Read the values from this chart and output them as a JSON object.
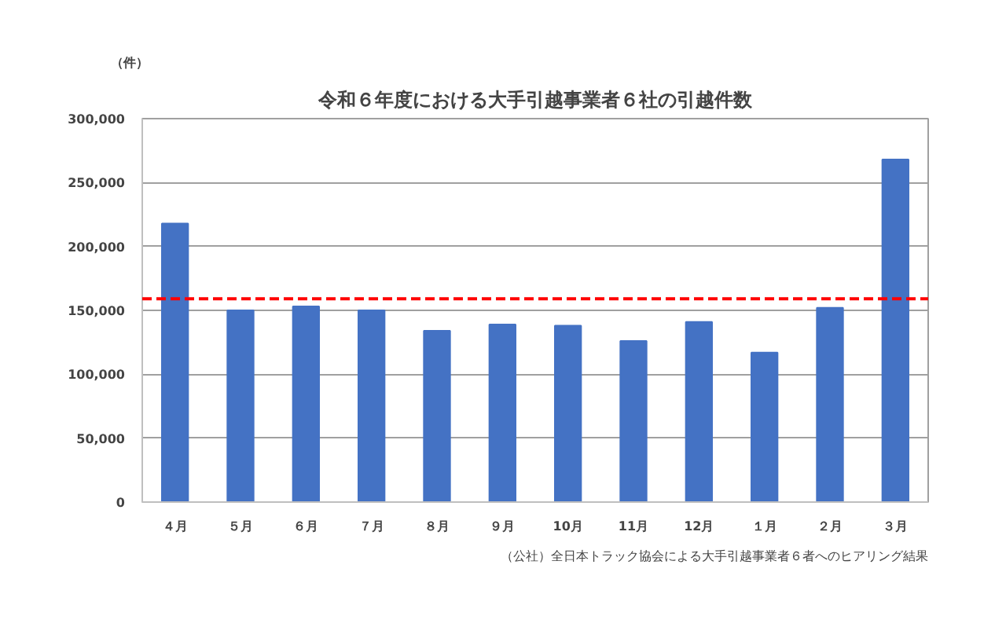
{
  "chart_data": {
    "type": "bar",
    "title": "令和６年度における大手引越事業者６社の引越件数",
    "ylabel": "（件）",
    "categories": [
      "４月",
      "５月",
      "６月",
      "７月",
      "８月",
      "９月",
      "10月",
      "11月",
      "12月",
      "１月",
      "２月",
      "３月"
    ],
    "values": [
      218000,
      150000,
      153000,
      150000,
      134000,
      139000,
      138000,
      126000,
      141000,
      117000,
      152000,
      268000
    ],
    "color": "#4472c4",
    "ylim": [
      0,
      300000
    ],
    "yticks": [
      {
        "value": 0,
        "label": "0"
      },
      {
        "value": 50000,
        "label": "50,000"
      },
      {
        "value": 100000,
        "label": "100,000"
      },
      {
        "value": 150000,
        "label": "150,000"
      },
      {
        "value": 200000,
        "label": "200,000"
      },
      {
        "value": 250000,
        "label": "250,000"
      },
      {
        "value": 300000,
        "label": "300,000"
      }
    ],
    "grid": "y",
    "ref_lines": [
      {
        "axis": "y",
        "value": 159000,
        "color": "#ff0000",
        "line_style": "dashed"
      }
    ],
    "annotations": [
      "（公社）全日本トラック協会による大手引越事業者６者へのヒアリング結果"
    ]
  }
}
